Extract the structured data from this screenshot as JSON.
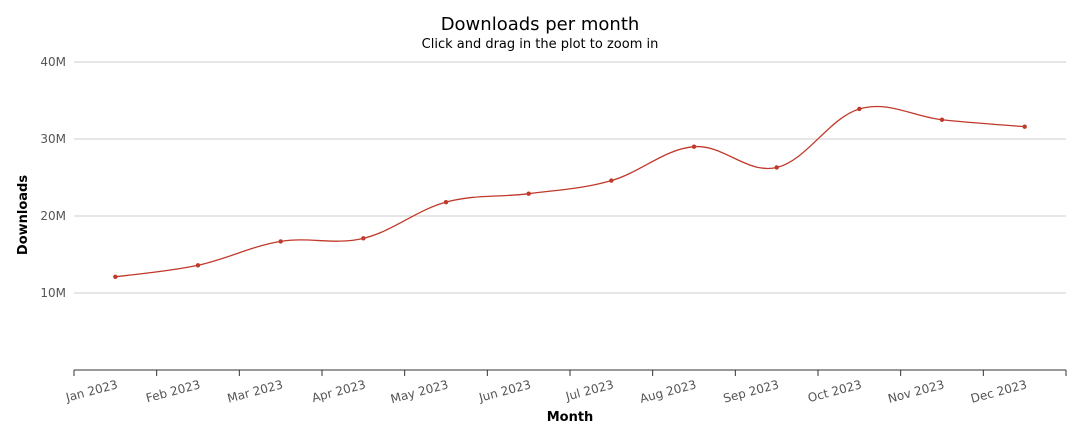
{
  "chart_data": {
    "type": "line",
    "title": "Downloads per month",
    "subtitle": "Click and drag in the plot to zoom in",
    "xlabel": "Month",
    "ylabel": "Downloads",
    "categories": [
      "Jan 2023",
      "Feb 2023",
      "Mar 2023",
      "Apr 2023",
      "May 2023",
      "Jun 2023",
      "Jul 2023",
      "Aug 2023",
      "Sep 2023",
      "Oct 2023",
      "Nov 2023",
      "Dec 2023"
    ],
    "series": [
      {
        "values": [
          12100000,
          13600000,
          16700000,
          17100000,
          21800000,
          22900000,
          24600000,
          29000000,
          26300000,
          33900000,
          32500000,
          31600000
        ]
      }
    ],
    "ylim": [
      0,
      40000000
    ],
    "yticks": [
      {
        "value": 10000000,
        "label": "10M"
      },
      {
        "value": 20000000,
        "label": "20M"
      },
      {
        "value": 30000000,
        "label": "30M"
      },
      {
        "value": 40000000,
        "label": "40M"
      }
    ],
    "grid": true,
    "line_color": "#c0392b",
    "grid_color": "#cccccc"
  }
}
